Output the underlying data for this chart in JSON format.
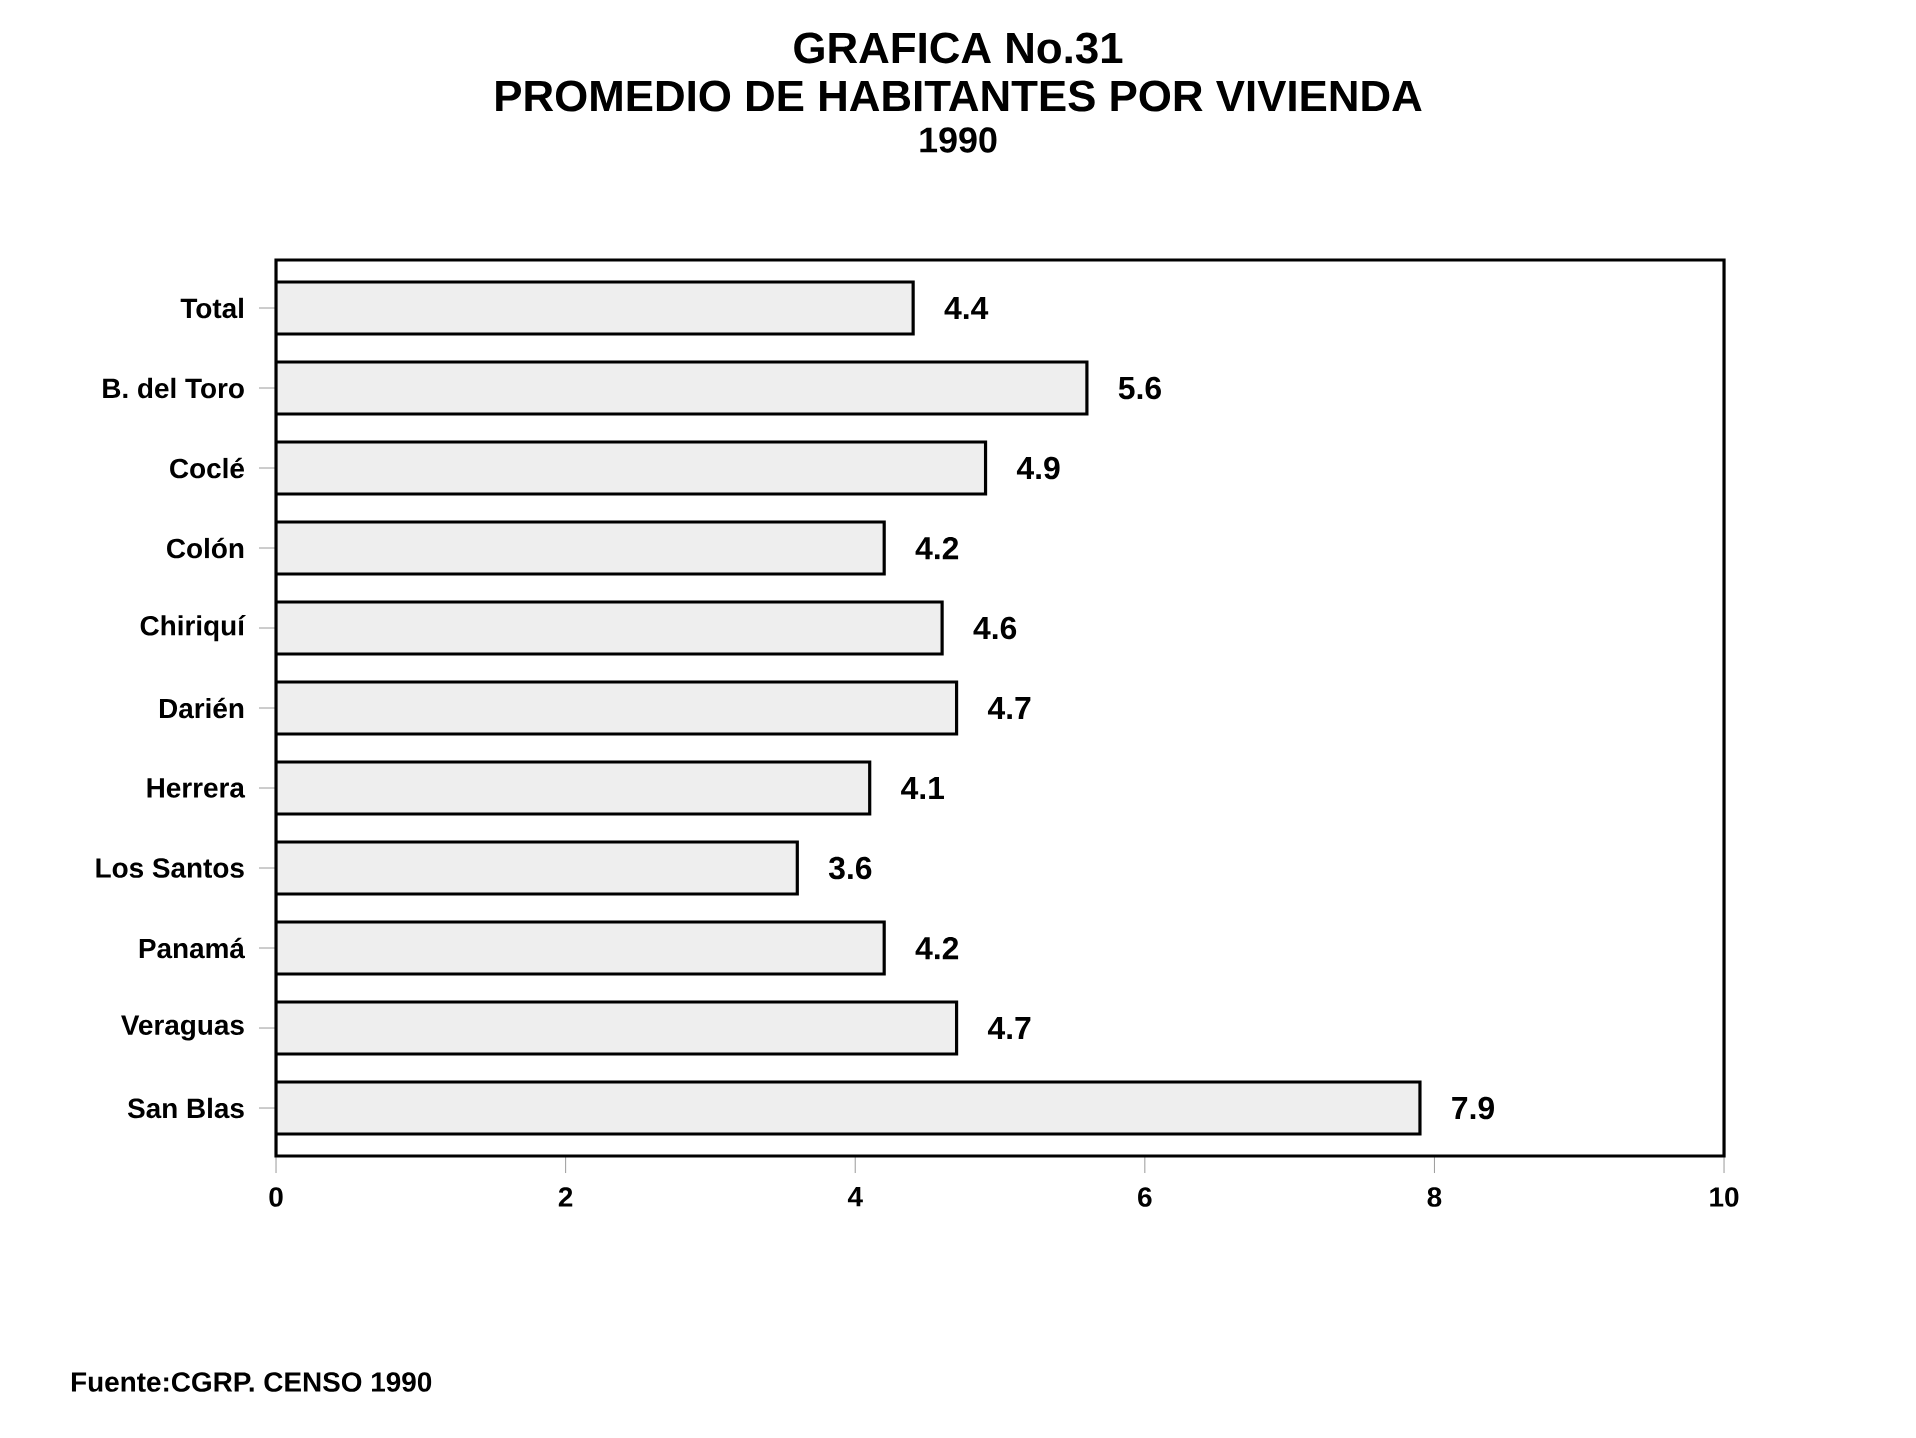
{
  "chart_data": {
    "type": "bar",
    "orientation": "horizontal",
    "title": "GRAFICA No.31",
    "subtitle": "PROMEDIO DE HABITANTES POR VIVIENDA",
    "annotations": [
      "1990",
      "Fuente:CGRP. CENSO 1990"
    ],
    "categories": [
      "Total",
      "B. del Toro",
      "Coclé",
      "Colón",
      "Chiriquí",
      "Darién",
      "Herrera",
      "Los Santos",
      "Panamá",
      "Veraguas",
      "San Blas"
    ],
    "values": [
      4.4,
      5.6,
      4.9,
      4.2,
      4.6,
      4.7,
      4.1,
      3.6,
      4.2,
      4.7,
      7.9
    ],
    "color": "#eeeeee",
    "xlim": [
      0,
      10
    ],
    "xticks": [
      0,
      2,
      4,
      6,
      8,
      10
    ],
    "data_labels": true
  }
}
